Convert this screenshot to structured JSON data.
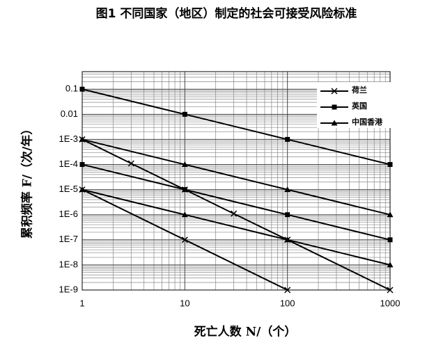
{
  "chart_data": {
    "type": "line",
    "title": "图1 不同国家（地区）制定的社会可接受风险标准",
    "x_label": "死亡人数 N/（个）",
    "y_label": "累积频率 F/（次/年）",
    "log_x": true,
    "log_y": true,
    "grid": true,
    "legend": "upper right",
    "xlim": [
      1,
      1000
    ],
    "xticks": [
      1,
      10,
      100,
      1000
    ],
    "ylim": [
      1e-09,
      0.5
    ],
    "yticks": [
      {
        "value": 1e-09,
        "label": "1E-9"
      },
      {
        "value": 1e-08,
        "label": "1E-8"
      },
      {
        "value": 1e-07,
        "label": "1E-7"
      },
      {
        "value": 1e-06,
        "label": "1E-6"
      },
      {
        "value": 1e-05,
        "label": "1E-5"
      },
      {
        "value": 0.0001,
        "label": "1E-4"
      },
      {
        "value": 0.001,
        "label": "1E-3"
      },
      0.01,
      0.1
    ],
    "series": [
      {
        "name": "荷兰",
        "color": "#000000",
        "marker": "x",
        "x": [
          1,
          3,
          10,
          30,
          100,
          1000,
          null,
          1,
          10,
          100
        ],
        "values": [
          0.001,
          0.00011,
          1e-05,
          1.1e-06,
          1e-07,
          1e-09,
          null,
          1e-05,
          1e-07,
          1e-09
        ]
      },
      {
        "name": "英国",
        "color": "#000000",
        "marker": "square",
        "x": [
          1,
          10,
          100,
          1000,
          null,
          1,
          10,
          100,
          1000
        ],
        "values": [
          0.1,
          0.01,
          0.001,
          0.0001,
          null,
          0.0001,
          1e-05,
          1e-06,
          1e-07
        ]
      },
      {
        "name": "中国香港",
        "color": "#000000",
        "marker": "triangle",
        "x": [
          1,
          10,
          100,
          1000,
          null,
          1,
          10,
          100,
          1000
        ],
        "values": [
          0.001,
          0.0001,
          1e-05,
          1e-06,
          null,
          1e-05,
          1e-06,
          1e-07,
          1e-08
        ]
      }
    ]
  }
}
